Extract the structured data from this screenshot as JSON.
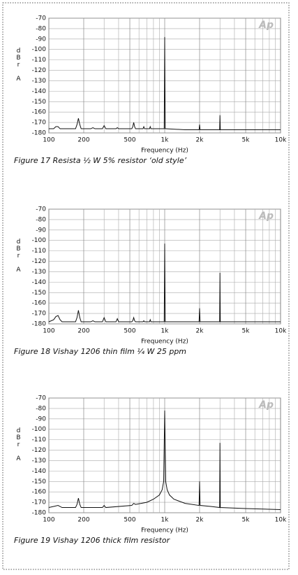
{
  "chart_data": [
    {
      "type": "line",
      "logo": "Ap",
      "xlabel": "Frequency (Hz)",
      "ylabel": "dBr A",
      "caption": "Figure 17 Resista ½ W 5% resistor ‘old style’",
      "xlog": true,
      "grid": true,
      "xlim": [
        100,
        10000
      ],
      "ylim": [
        -180,
        -70
      ],
      "xticks": [
        100,
        200,
        500,
        {
          "value": 1000,
          "label": "1k"
        },
        {
          "value": 2000,
          "label": "2k"
        },
        {
          "value": 5000,
          "label": "5k"
        },
        {
          "value": 10000,
          "label": "10k"
        }
      ],
      "x_minor_grid": [
        300,
        400,
        600,
        700,
        800,
        900,
        3000,
        4000,
        6000,
        7000,
        8000,
        9000
      ],
      "yticks": [
        -70,
        -80,
        -90,
        -100,
        -110,
        -120,
        -130,
        -140,
        -150,
        -160,
        -170,
        -180
      ],
      "series": [
        {
          "color": "#111111",
          "x": [
            100,
            110,
            115,
            120,
            125,
            130,
            170,
            175,
            180,
            185,
            190,
            230,
            240,
            250,
            290,
            300,
            310,
            380,
            390,
            400,
            520,
            530,
            540,
            550,
            560,
            650,
            660,
            670,
            740,
            750,
            760,
            980,
            990,
            1000,
            1010,
            1020,
            1500,
            1980,
            2000,
            2020,
            2500,
            2980,
            3000,
            3020,
            5000,
            10000
          ],
          "values": [
            -176,
            -176,
            -174,
            -174,
            -176,
            -176,
            -176,
            -172,
            -166,
            -172,
            -176,
            -176,
            -175,
            -176,
            -176,
            -173,
            -176,
            -176,
            -175,
            -176,
            -176,
            -174,
            -170,
            -174,
            -176,
            -176,
            -174,
            -176,
            -176,
            -174,
            -176,
            -176,
            -176,
            -88,
            -176,
            -176,
            -177,
            -177,
            -172,
            -177,
            -177,
            -177,
            -163,
            -177,
            -177,
            -177
          ]
        }
      ]
    },
    {
      "type": "line",
      "logo": "Ap",
      "xlabel": "Frequency (Hz)",
      "ylabel": "dBr A",
      "caption": "Figure 18 Vishay 1206 thin film ¼ W 25 ppm",
      "xlog": true,
      "grid": true,
      "xlim": [
        100,
        10000
      ],
      "ylim": [
        -180,
        -70
      ],
      "xticks": [
        100,
        200,
        500,
        {
          "value": 1000,
          "label": "1k"
        },
        {
          "value": 2000,
          "label": "2k"
        },
        {
          "value": 5000,
          "label": "5k"
        },
        {
          "value": 10000,
          "label": "10k"
        }
      ],
      "x_minor_grid": [
        300,
        400,
        600,
        700,
        800,
        900,
        3000,
        4000,
        6000,
        7000,
        8000,
        9000
      ],
      "yticks": [
        -70,
        -80,
        -90,
        -100,
        -110,
        -120,
        -130,
        -140,
        -150,
        -160,
        -170,
        -180
      ],
      "series": [
        {
          "color": "#111111",
          "x": [
            100,
            110,
            115,
            120,
            125,
            130,
            170,
            175,
            180,
            185,
            190,
            230,
            240,
            250,
            290,
            300,
            310,
            380,
            390,
            400,
            520,
            530,
            540,
            550,
            560,
            650,
            660,
            670,
            740,
            750,
            760,
            980,
            990,
            1000,
            1010,
            1020,
            1500,
            1980,
            2000,
            2020,
            2500,
            2980,
            3000,
            3020,
            5000,
            10000
          ],
          "values": [
            -178,
            -176,
            -173,
            -172,
            -176,
            -178,
            -178,
            -174,
            -167,
            -174,
            -178,
            -178,
            -177,
            -178,
            -178,
            -174,
            -178,
            -178,
            -175,
            -178,
            -178,
            -177,
            -174,
            -177,
            -178,
            -178,
            -177,
            -178,
            -178,
            -176,
            -178,
            -178,
            -178,
            -103,
            -178,
            -178,
            -178,
            -178,
            -165,
            -178,
            -178,
            -178,
            -131,
            -178,
            -178,
            -178
          ]
        }
      ]
    },
    {
      "type": "line",
      "logo": "Ap",
      "xlabel": "Frequency (Hz)",
      "ylabel": "dBr A",
      "caption": "Figure 19 Vishay 1206 thick film resistor",
      "xlog": true,
      "grid": true,
      "xlim": [
        100,
        10000
      ],
      "ylim": [
        -180,
        -70
      ],
      "xticks": [
        100,
        200,
        500,
        {
          "value": 1000,
          "label": "1k"
        },
        {
          "value": 2000,
          "label": "2k"
        },
        {
          "value": 5000,
          "label": "5k"
        },
        {
          "value": 10000,
          "label": "10k"
        }
      ],
      "x_minor_grid": [
        300,
        400,
        600,
        700,
        800,
        900,
        3000,
        4000,
        6000,
        7000,
        8000,
        9000
      ],
      "yticks": [
        -70,
        -80,
        -90,
        -100,
        -110,
        -120,
        -130,
        -140,
        -150,
        -160,
        -170,
        -180
      ],
      "series": [
        {
          "color": "#111111",
          "x": [
            100,
            110,
            120,
            130,
            170,
            175,
            180,
            185,
            190,
            290,
            300,
            310,
            520,
            540,
            560,
            700,
            800,
            900,
            950,
            980,
            1000,
            1020,
            1050,
            1100,
            1200,
            1500,
            1980,
            2000,
            2020,
            2500,
            2980,
            3000,
            3020,
            5000,
            10000
          ],
          "values": [
            -175,
            -174,
            -173,
            -175,
            -175,
            -172,
            -166,
            -172,
            -175,
            -175,
            -173,
            -175,
            -173,
            -171,
            -172,
            -170,
            -167,
            -163,
            -158,
            -150,
            -82,
            -150,
            -158,
            -163,
            -167,
            -171,
            -173,
            -150,
            -173,
            -174,
            -175,
            -113,
            -175,
            -176,
            -177
          ]
        }
      ]
    }
  ]
}
